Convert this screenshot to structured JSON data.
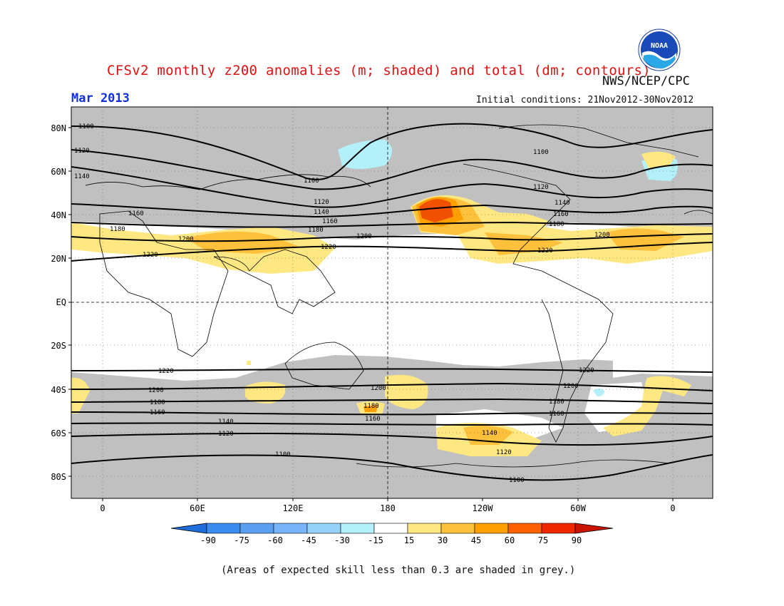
{
  "header": {
    "title": "CFSv2 monthly z200 anomalies (m; shaded) and total (dm; contours)",
    "agency": "NWS/NCEP/CPC",
    "month": "Mar 2013",
    "initial_conditions": "Initial conditions: 21Nov2012-30Nov2012",
    "logo_text": "NOAA"
  },
  "map": {
    "lat_labels": [
      "80N",
      "60N",
      "40N",
      "20N",
      "EQ",
      "20S",
      "40S",
      "60S",
      "80S"
    ],
    "lon_labels": [
      "0",
      "60E",
      "120E",
      "180",
      "120W",
      "60W",
      "0"
    ],
    "contour_labels": [
      "1100",
      "1120",
      "1140",
      "1160",
      "1180",
      "1200",
      "1220",
      "1100",
      "1120",
      "1140",
      "1160",
      "1180",
      "1200",
      "1220",
      "1100",
      "1120",
      "1140",
      "1160",
      "1180",
      "1200",
      "1220",
      "1200",
      "1180",
      "1160",
      "1140",
      "1120",
      "1100",
      "1220",
      "1200",
      "1180",
      "1160",
      "1140",
      "1120",
      "1100",
      "1220",
      "1200",
      "1180",
      "1160"
    ],
    "colors": {
      "grey_mask": "#c0c0c0",
      "light_blue": "#b4f0fa",
      "yellow": "#ffe882",
      "orange_light": "#ffc03c",
      "orange": "#ffa000",
      "red_orange": "#f05000",
      "red": "#dc2000"
    }
  },
  "colorbar": {
    "ticks": [
      "-90",
      "-75",
      "-60",
      "-45",
      "-30",
      "-15",
      "15",
      "30",
      "45",
      "60",
      "75",
      "90"
    ],
    "colors": [
      "#1e6edc",
      "#3c8cf0",
      "#5aa0f0",
      "#78b4fa",
      "#96d2fa",
      "#b4f0fa",
      "#ffffff",
      "#ffe882",
      "#ffc03c",
      "#ffa000",
      "#ff6000",
      "#f02800",
      "#c81400"
    ]
  },
  "footnote": "(Areas of expected skill less than 0.3 are shaded in grey.)"
}
